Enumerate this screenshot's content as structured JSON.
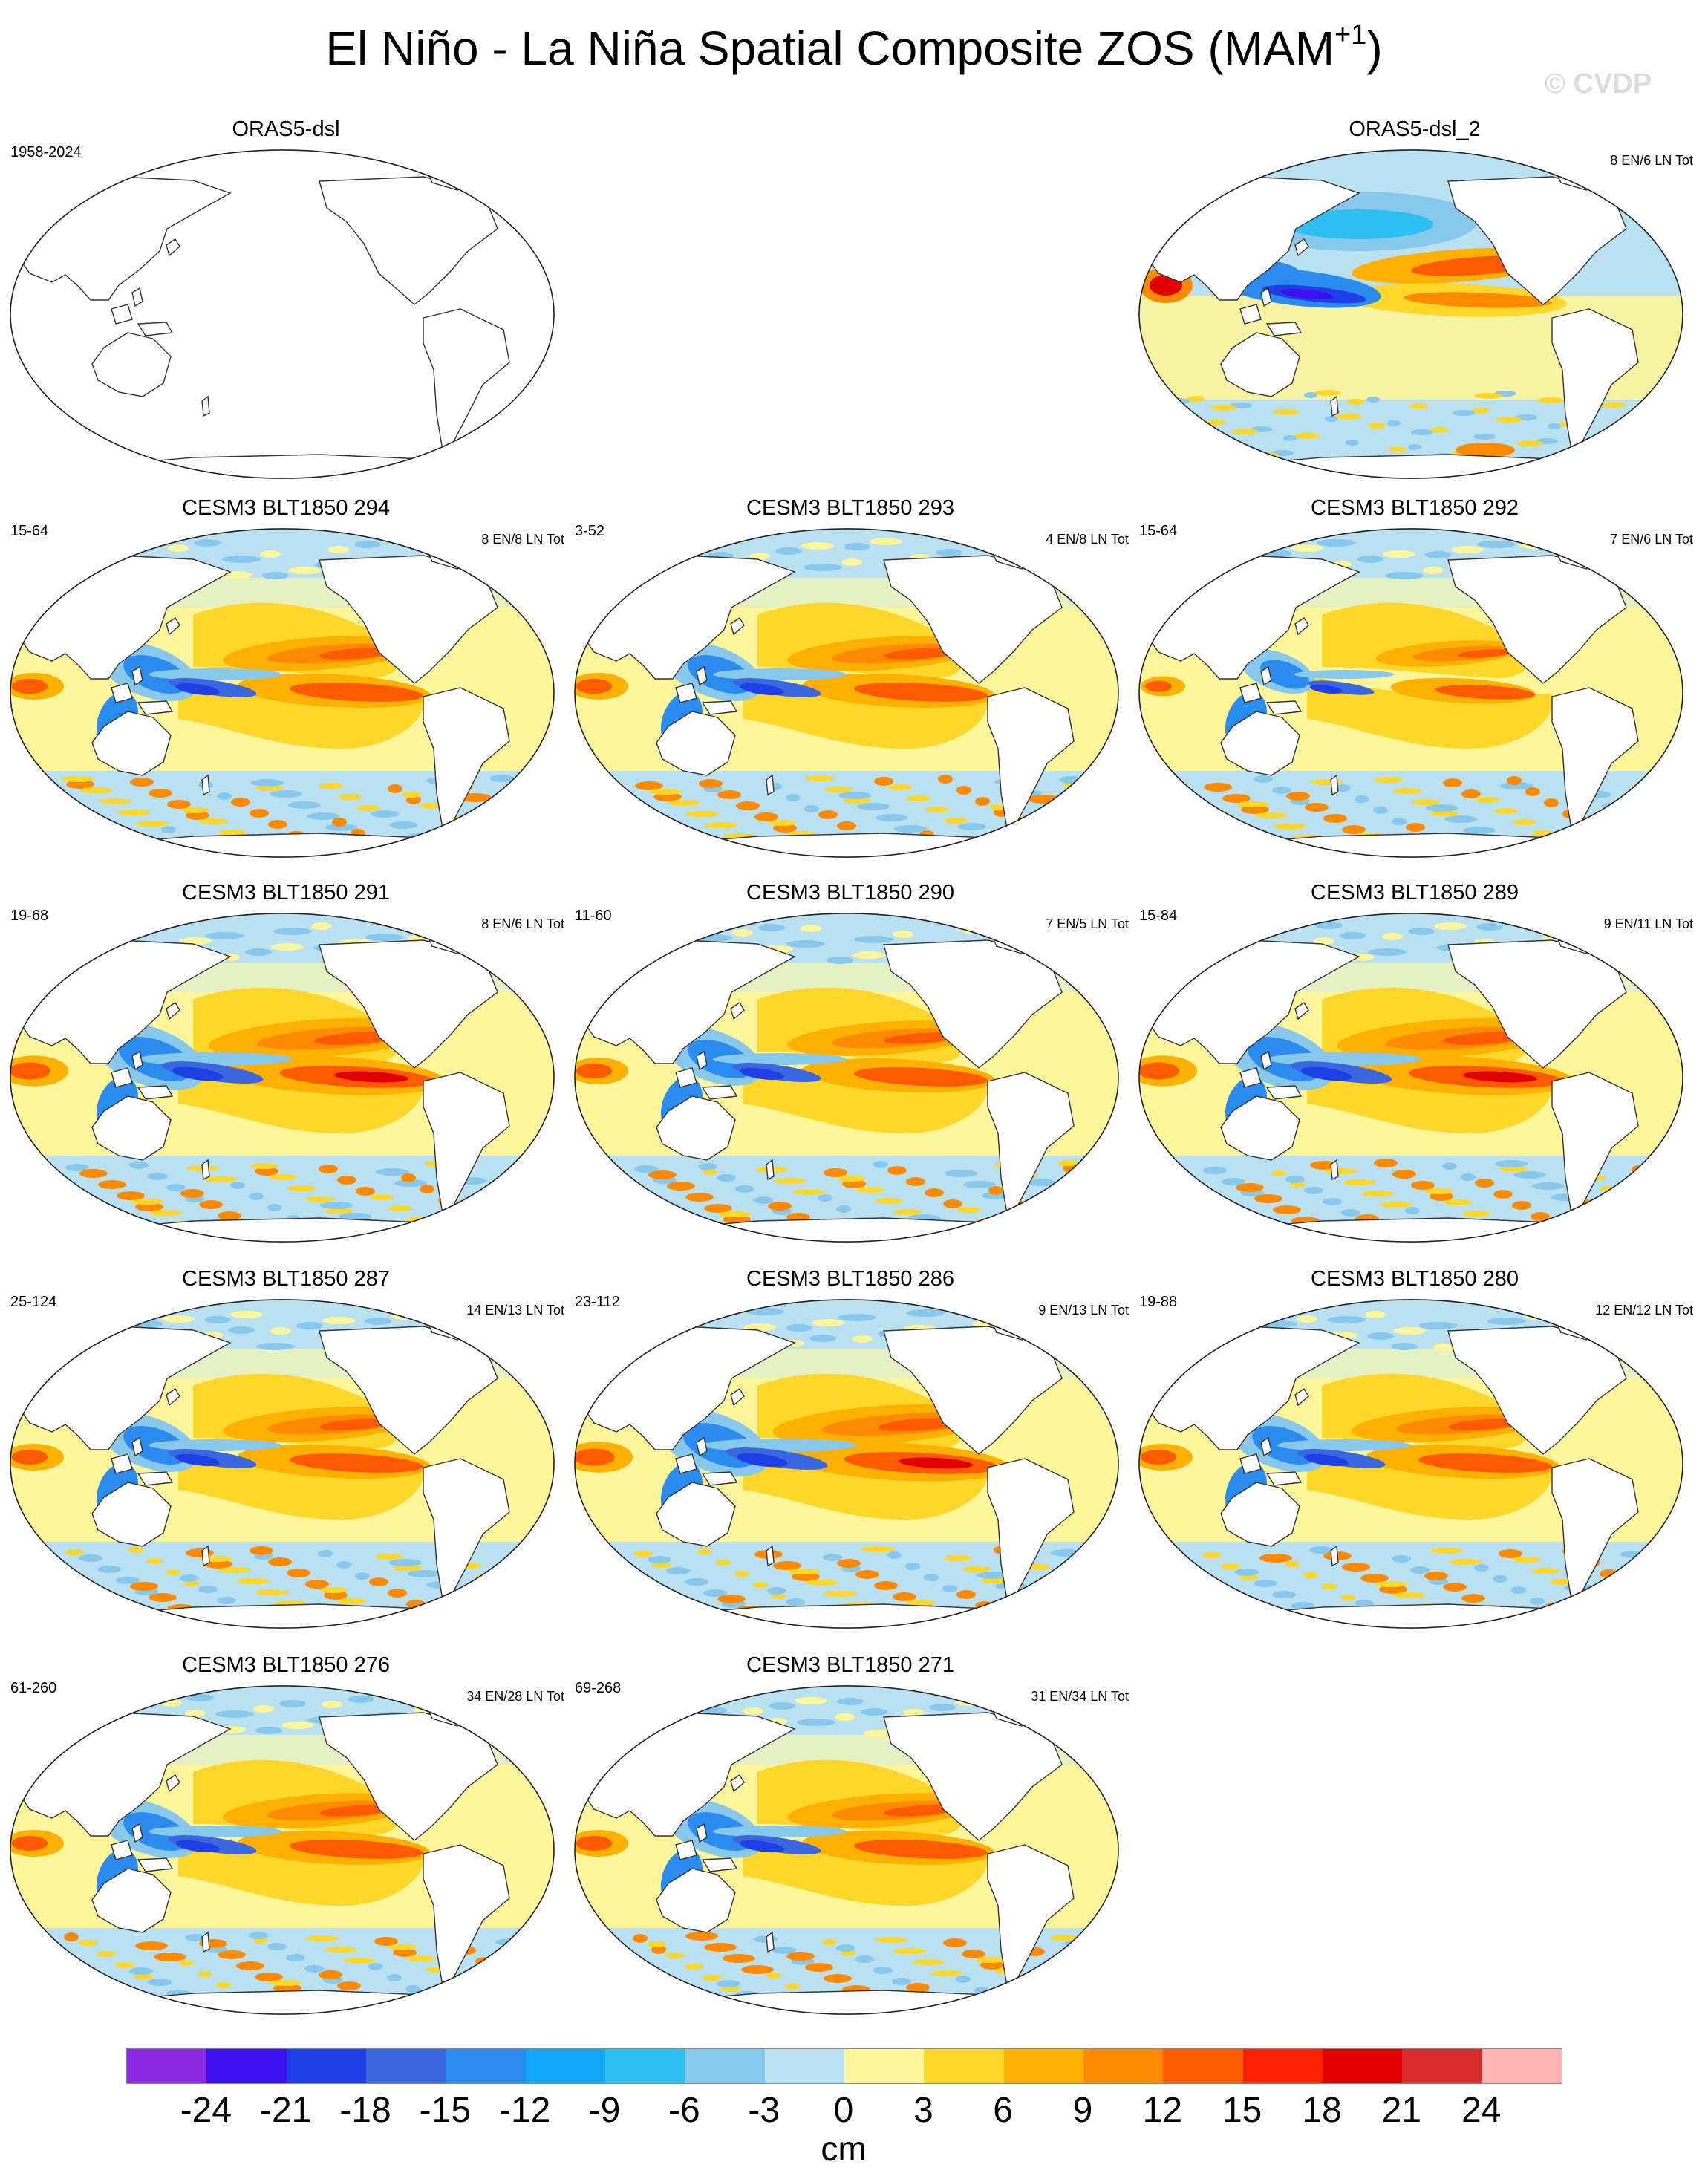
{
  "figure": {
    "title_main": "El Niño - La Niña Spatial Composite ZOS (MAM",
    "title_sup": "+1",
    "title_close": ")",
    "watermark": "© CVDP"
  },
  "panels": [
    {
      "title": "ORAS5-dsl",
      "years": "1958-2024",
      "counts": "",
      "variant": "empty"
    },
    {
      "title": "ORAS5-dsl_2",
      "years": "",
      "counts": "8 EN/6 LN Tot",
      "variant": "obs"
    },
    {
      "title": "CESM3 BLT1850 294",
      "years": "15-64",
      "counts": "8 EN/8 LN Tot",
      "variant": "model"
    },
    {
      "title": "CESM3 BLT1850 293",
      "years": "3-52",
      "counts": "4 EN/8 LN Tot",
      "variant": "model"
    },
    {
      "title": "CESM3 BLT1850 292",
      "years": "15-64",
      "counts": "7 EN/6 LN Tot",
      "variant": "weak"
    },
    {
      "title": "CESM3 BLT1850 291",
      "years": "19-68",
      "counts": "8 EN/6 LN Tot",
      "variant": "strong"
    },
    {
      "title": "CESM3 BLT1850 290",
      "years": "11-60",
      "counts": "7 EN/5 LN Tot",
      "variant": "model"
    },
    {
      "title": "CESM3 BLT1850 289",
      "years": "15-84",
      "counts": "9 EN/11 LN Tot",
      "variant": "strong"
    },
    {
      "title": "CESM3 BLT1850 287",
      "years": "25-124",
      "counts": "14 EN/13 LN Tot",
      "variant": "model"
    },
    {
      "title": "CESM3 BLT1850 286",
      "years": "23-112",
      "counts": "9 EN/13 LN Tot",
      "variant": "strong"
    },
    {
      "title": "CESM3 BLT1850 280",
      "years": "19-88",
      "counts": "12 EN/12 LN Tot",
      "variant": "model"
    },
    {
      "title": "CESM3 BLT1850 276",
      "years": "61-260",
      "counts": "34 EN/28 LN Tot",
      "variant": "model"
    },
    {
      "title": "CESM3 BLT1850 271",
      "years": "69-268",
      "counts": "31 EN/34 LN Tot",
      "variant": "model"
    }
  ],
  "colorbar": {
    "unit": "cm",
    "ticks": [
      "-24",
      "-21",
      "-18",
      "-15",
      "-12",
      "-9",
      "-6",
      "-3",
      "0",
      "3",
      "6",
      "9",
      "12",
      "15",
      "18",
      "21",
      "24"
    ],
    "colors": [
      "#8a2be2",
      "#3a10f0",
      "#1f3fe6",
      "#3a66e0",
      "#2b8cf0",
      "#14a6f6",
      "#2ec0f4",
      "#88c8ec",
      "#b9e1f2",
      "#fff59a",
      "#ffd72a",
      "#ffb000",
      "#ff8a00",
      "#ff5a00",
      "#ff1e00",
      "#e00000",
      "#d72a2a",
      "#ffb3b3"
    ]
  }
}
